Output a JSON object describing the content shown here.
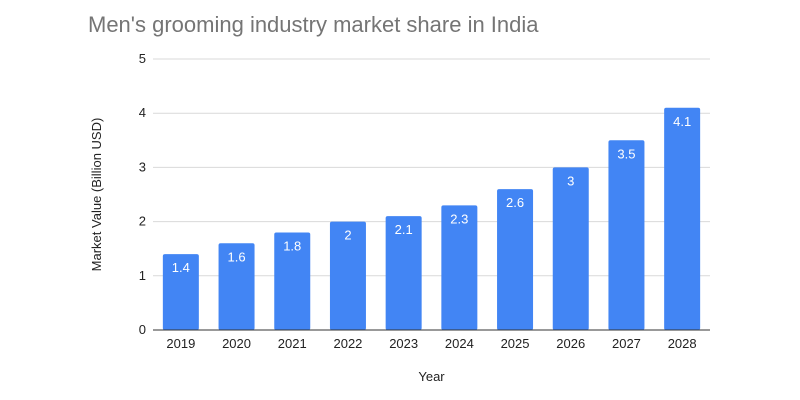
{
  "chart_data": {
    "type": "bar",
    "title": "Men's grooming industry market share in India",
    "xlabel": "Year",
    "ylabel": "Market Value (Billion USD)",
    "categories": [
      "2019",
      "2020",
      "2021",
      "2022",
      "2023",
      "2024",
      "2025",
      "2026",
      "2027",
      "2028"
    ],
    "values": [
      1.4,
      1.6,
      1.8,
      2,
      2.1,
      2.3,
      2.6,
      3,
      3.5,
      4.1
    ],
    "ylim": [
      0,
      5
    ],
    "yticks": [
      0,
      1,
      2,
      3,
      4,
      5
    ],
    "grid": true,
    "legend": "none",
    "data_labels": true,
    "bar_color": "#4285f4"
  }
}
